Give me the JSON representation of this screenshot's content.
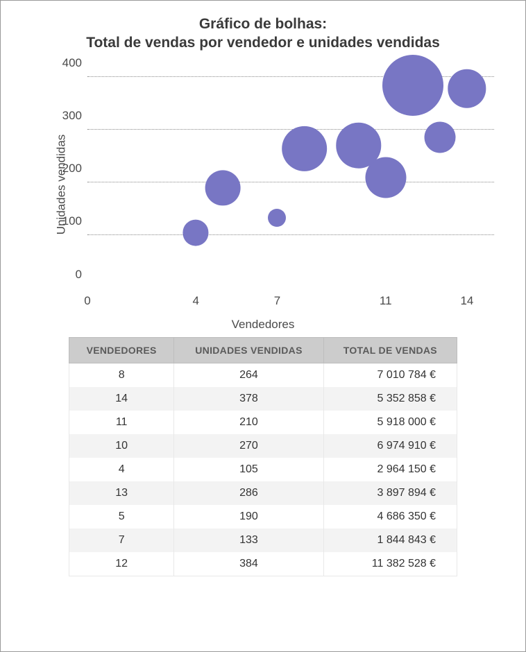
{
  "chart": {
    "type": "bubble",
    "title_line1": "Gráfico de bolhas:",
    "title_line2": "Total de vendas por vendedor e unidades vendidas",
    "title_fontsize": 21,
    "x_label": "Vendedores",
    "y_label": "Unidades vendidas",
    "label_fontsize": 17,
    "xlim": [
      0,
      15
    ],
    "ylim": [
      0,
      420
    ],
    "x_ticks": [
      0,
      4,
      7,
      11,
      14
    ],
    "y_ticks": [
      0,
      100,
      200,
      300,
      400
    ],
    "background_color": "#ffffff",
    "grid_color": "#888888",
    "grid_style": "dotted",
    "bubble_color": "#7876c4",
    "bubble_opacity": 1.0,
    "size_ref_min": 1844843,
    "size_ref_max": 11382528,
    "radius_px_min": 13,
    "radius_px_max": 44,
    "data": [
      {
        "x": 8,
        "y": 264,
        "size": 7010784
      },
      {
        "x": 14,
        "y": 378,
        "size": 5352858
      },
      {
        "x": 11,
        "y": 210,
        "size": 5918000
      },
      {
        "x": 10,
        "y": 270,
        "size": 6974910
      },
      {
        "x": 4,
        "y": 105,
        "size": 2964150
      },
      {
        "x": 13,
        "y": 286,
        "size": 3897894
      },
      {
        "x": 5,
        "y": 190,
        "size": 4686350
      },
      {
        "x": 7,
        "y": 133,
        "size": 1844843
      },
      {
        "x": 12,
        "y": 384,
        "size": 11382528
      }
    ]
  },
  "table": {
    "columns": [
      "VENDEDORES",
      "UNIDADES VENDIDAS",
      "TOTAL DE VENDAS"
    ],
    "header_bg": "#cccccc",
    "header_text_color": "#5a5a5a",
    "row_alt_bg": "#f3f3f3",
    "border_color": "#e8e8e8",
    "currency_suffix": " €",
    "rows": [
      {
        "vendedores": "8",
        "unidades": "264",
        "total": "7 010 784 €"
      },
      {
        "vendedores": "14",
        "unidades": "378",
        "total": "5 352 858 €"
      },
      {
        "vendedores": "11",
        "unidades": "210",
        "total": "5 918 000 €"
      },
      {
        "vendedores": "10",
        "unidades": "270",
        "total": "6 974 910 €"
      },
      {
        "vendedores": "4",
        "unidades": "105",
        "total": "2 964 150 €"
      },
      {
        "vendedores": "13",
        "unidades": "286",
        "total": "3 897 894 €"
      },
      {
        "vendedores": "5",
        "unidades": "190",
        "total": "4 686 350 €"
      },
      {
        "vendedores": "7",
        "unidades": "133",
        "total": "1 844 843 €"
      },
      {
        "vendedores": "12",
        "unidades": "384",
        "total": "11 382 528 €"
      }
    ]
  }
}
